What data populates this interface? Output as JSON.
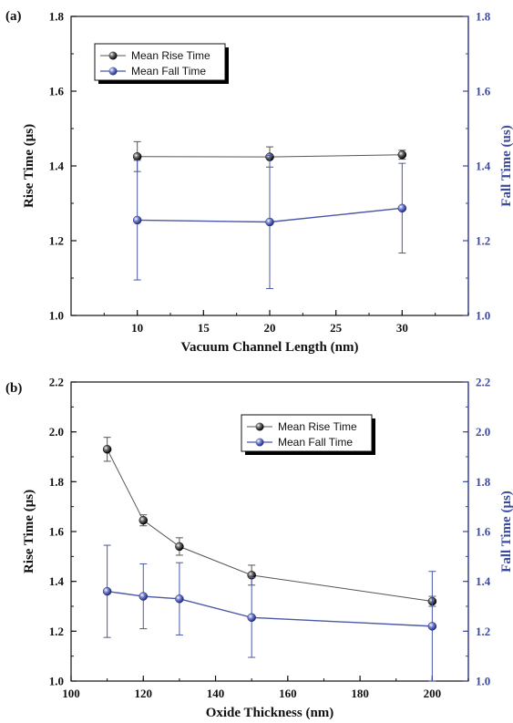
{
  "chart_data": [
    {
      "panel": "(a)",
      "type": "line",
      "xlabel": "Vacuum Channel Length (nm)",
      "ylabel": "Rise Time (μs)",
      "ylabel_right": "Fall Time (us)",
      "xlim": [
        5,
        35
      ],
      "ylim": [
        1.0,
        1.8
      ],
      "xticks": [
        10,
        15,
        20,
        25,
        30
      ],
      "yticks": [
        1.0,
        1.2,
        1.4,
        1.6,
        1.8
      ],
      "legend_position": "top-left",
      "series": [
        {
          "name": "Mean Rise Time",
          "color": "#555555",
          "marker": "black-sphere",
          "x": [
            10,
            20,
            30
          ],
          "y": [
            1.425,
            1.424,
            1.43
          ],
          "err": [
            0.04,
            0.027,
            0.012
          ]
        },
        {
          "name": "Mean Fall Time",
          "color": "#4a58a8",
          "marker": "blue-sphere",
          "x": [
            10,
            20,
            30
          ],
          "y": [
            1.255,
            1.25,
            1.287
          ],
          "err": [
            0.16,
            0.178,
            0.12
          ]
        }
      ]
    },
    {
      "panel": "(b)",
      "type": "line",
      "xlabel": "Oxide Thickness (nm)",
      "ylabel": "Rise Time (μs)",
      "ylabel_right": "Fall Time (μs)",
      "xlim": [
        100,
        210
      ],
      "ylim": [
        1.0,
        2.2
      ],
      "xticks": [
        100,
        120,
        140,
        160,
        180,
        200
      ],
      "yticks": [
        1.0,
        1.2,
        1.4,
        1.6,
        1.8,
        2.0,
        2.2
      ],
      "legend_position": "top-right",
      "series": [
        {
          "name": "Mean Rise Time",
          "color": "#555555",
          "marker": "black-sphere",
          "x": [
            110,
            120,
            130,
            150,
            200
          ],
          "y": [
            1.93,
            1.645,
            1.54,
            1.425,
            1.32
          ],
          "err": [
            0.048,
            0.022,
            0.035,
            0.04,
            0.02
          ]
        },
        {
          "name": "Mean Fall Time",
          "color": "#4a58a8",
          "marker": "blue-sphere",
          "x": [
            110,
            120,
            130,
            150,
            200
          ],
          "y": [
            1.36,
            1.34,
            1.33,
            1.255,
            1.22
          ],
          "err": [
            0.185,
            0.13,
            0.145,
            0.16,
            0.22
          ]
        }
      ]
    }
  ],
  "colors": {
    "axis_left": "#111111",
    "axis_right": "#3b4aa0",
    "rise": "#555555",
    "fall": "#4a58a8"
  }
}
